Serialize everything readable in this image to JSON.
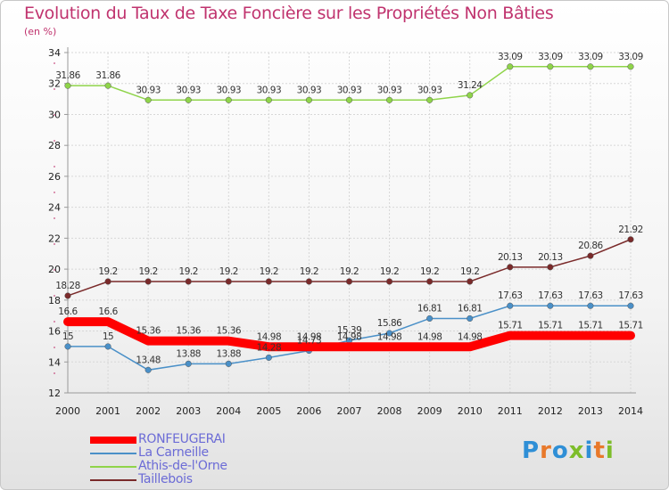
{
  "title": "Evolution du Taux de Taxe Foncière sur les Propriétés Non Bâties",
  "unit": "(en %)",
  "logo": [
    "P",
    "r",
    "o",
    "x",
    "i",
    "t",
    "i"
  ],
  "logo_colors": [
    "#2f8fd6",
    "#e8792b",
    "#2f8fd6",
    "#7dbd2a",
    "#2f8fd6",
    "#e8792b",
    "#7dbd2a"
  ],
  "chart_data": {
    "type": "line",
    "title": "Evolution du Taux de Taxe Foncière sur les Propriétés Non Bâties",
    "ylabel": "(en %)",
    "ylim": [
      12,
      34
    ],
    "yticks": [
      12,
      14,
      16,
      18,
      20,
      22,
      24,
      26,
      28,
      30,
      32,
      34
    ],
    "x": [
      "2000",
      "2001",
      "2002",
      "2003",
      "2004",
      "2005",
      "2006",
      "2007",
      "2008",
      "2009",
      "2010",
      "2011",
      "2012",
      "2013",
      "2014"
    ],
    "grid": true,
    "legend": "bottom-left",
    "series": [
      {
        "name": "RONFEUGERAI",
        "color": "#ff0000",
        "thick": true,
        "values": [
          16.6,
          16.6,
          15.36,
          15.36,
          15.36,
          14.98,
          14.98,
          14.98,
          14.98,
          14.98,
          14.98,
          15.71,
          15.71,
          15.71,
          15.71
        ],
        "labels": [
          "16.6",
          "16.6",
          "15.36",
          "15.36",
          "15.36",
          "14.98",
          "14.98",
          "14.98",
          "14.98",
          "14.98",
          "14.98",
          "15.71",
          "15.71",
          "15.71",
          "15.71"
        ]
      },
      {
        "name": "La Carneille",
        "color": "#4a90c8",
        "values": [
          15,
          15,
          13.48,
          13.88,
          13.88,
          14.28,
          14.73,
          15.39,
          15.86,
          16.81,
          16.81,
          17.63,
          17.63,
          17.63,
          17.63
        ],
        "labels": [
          "15",
          "15",
          "13.48",
          "13.88",
          "13.88",
          "14.28",
          "14.73",
          "15.39",
          "15.86",
          "16.81",
          "16.81",
          "17.63",
          "17.63",
          "17.63",
          "17.63"
        ]
      },
      {
        "name": "Athis-de-l'Orne",
        "color": "#8fd44a",
        "values": [
          31.86,
          31.86,
          30.93,
          30.93,
          30.93,
          30.93,
          30.93,
          30.93,
          30.93,
          30.93,
          31.24,
          33.09,
          33.09,
          33.09,
          33.09
        ],
        "labels": [
          "31.86",
          "31.86",
          "30.93",
          "30.93",
          "30.93",
          "30.93",
          "30.93",
          "30.93",
          "30.93",
          "30.93",
          "31.24",
          "33.09",
          "33.09",
          "33.09",
          "33.09"
        ]
      },
      {
        "name": "Taillebois",
        "color": "#7a2a2a",
        "values": [
          18.28,
          19.2,
          19.2,
          19.2,
          19.2,
          19.2,
          19.2,
          19.2,
          19.2,
          19.2,
          19.2,
          20.13,
          20.13,
          20.86,
          21.92
        ],
        "labels": [
          "18.28",
          "19.2",
          "19.2",
          "19.2",
          "19.2",
          "19.2",
          "19.2",
          "19.2",
          "19.2",
          "19.2",
          "19.2",
          "20.13",
          "20.13",
          "20.86",
          "21.92"
        ]
      }
    ]
  }
}
